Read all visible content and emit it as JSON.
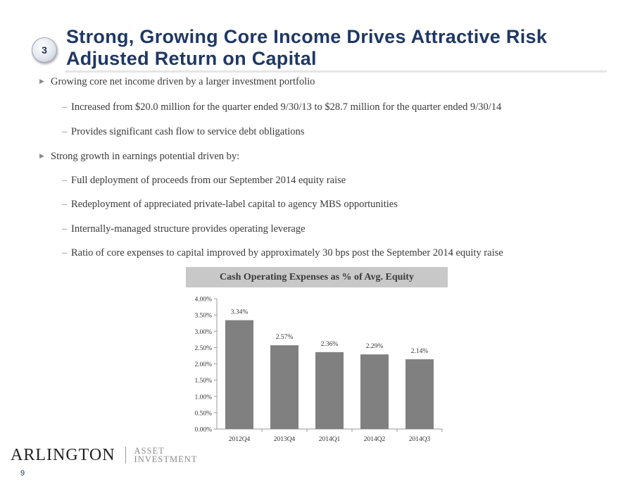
{
  "slide": {
    "section_number": "3",
    "title_line1": "Strong, Growing Core Income Drives Attractive Risk",
    "title_line2": "Adjusted Return on Capital",
    "page_number": "9"
  },
  "bullets": [
    {
      "text": "Growing core net income driven by a larger investment portfolio",
      "subs": [
        "Increased from $20.0 million for the quarter ended 9/30/13 to $28.7 million for the quarter ended 9/30/14",
        "Provides significant cash flow to service debt obligations"
      ]
    },
    {
      "text": "Strong growth in earnings potential driven by:",
      "subs": [
        "Full deployment of proceeds from our September 2014 equity raise",
        "Redeployment of appreciated private-label capital to agency MBS opportunities",
        "Internally-managed  structure provides operating leverage",
        "Ratio of core expenses to capital improved by approximately 30 bps post the September 2014 equity raise"
      ]
    }
  ],
  "chart_header": "Cash Operating Expenses as % of Avg. Equity",
  "chart_data": {
    "type": "bar",
    "title": "Cash Operating Expenses as % of Avg. Equity",
    "categories": [
      "2012Q4",
      "2013Q4",
      "2014Q1",
      "2014Q2",
      "2014Q3"
    ],
    "values": [
      3.34,
      2.57,
      2.36,
      2.29,
      2.14
    ],
    "data_labels": [
      "3.34%",
      "2.57%",
      "2.36%",
      "2.29%",
      "2.14%"
    ],
    "yticks": [
      "0.00%",
      "0.50%",
      "1.00%",
      "1.50%",
      "2.00%",
      "2.50%",
      "3.00%",
      "3.50%",
      "4.00%"
    ],
    "ylim": [
      0,
      4
    ],
    "xlabel": "",
    "ylabel": "",
    "grid": false,
    "bar_color": "#808080"
  },
  "logo": {
    "main": "ARLINGTON",
    "sub_line1": "ASSET",
    "sub_line2": "INVESTMENT"
  }
}
